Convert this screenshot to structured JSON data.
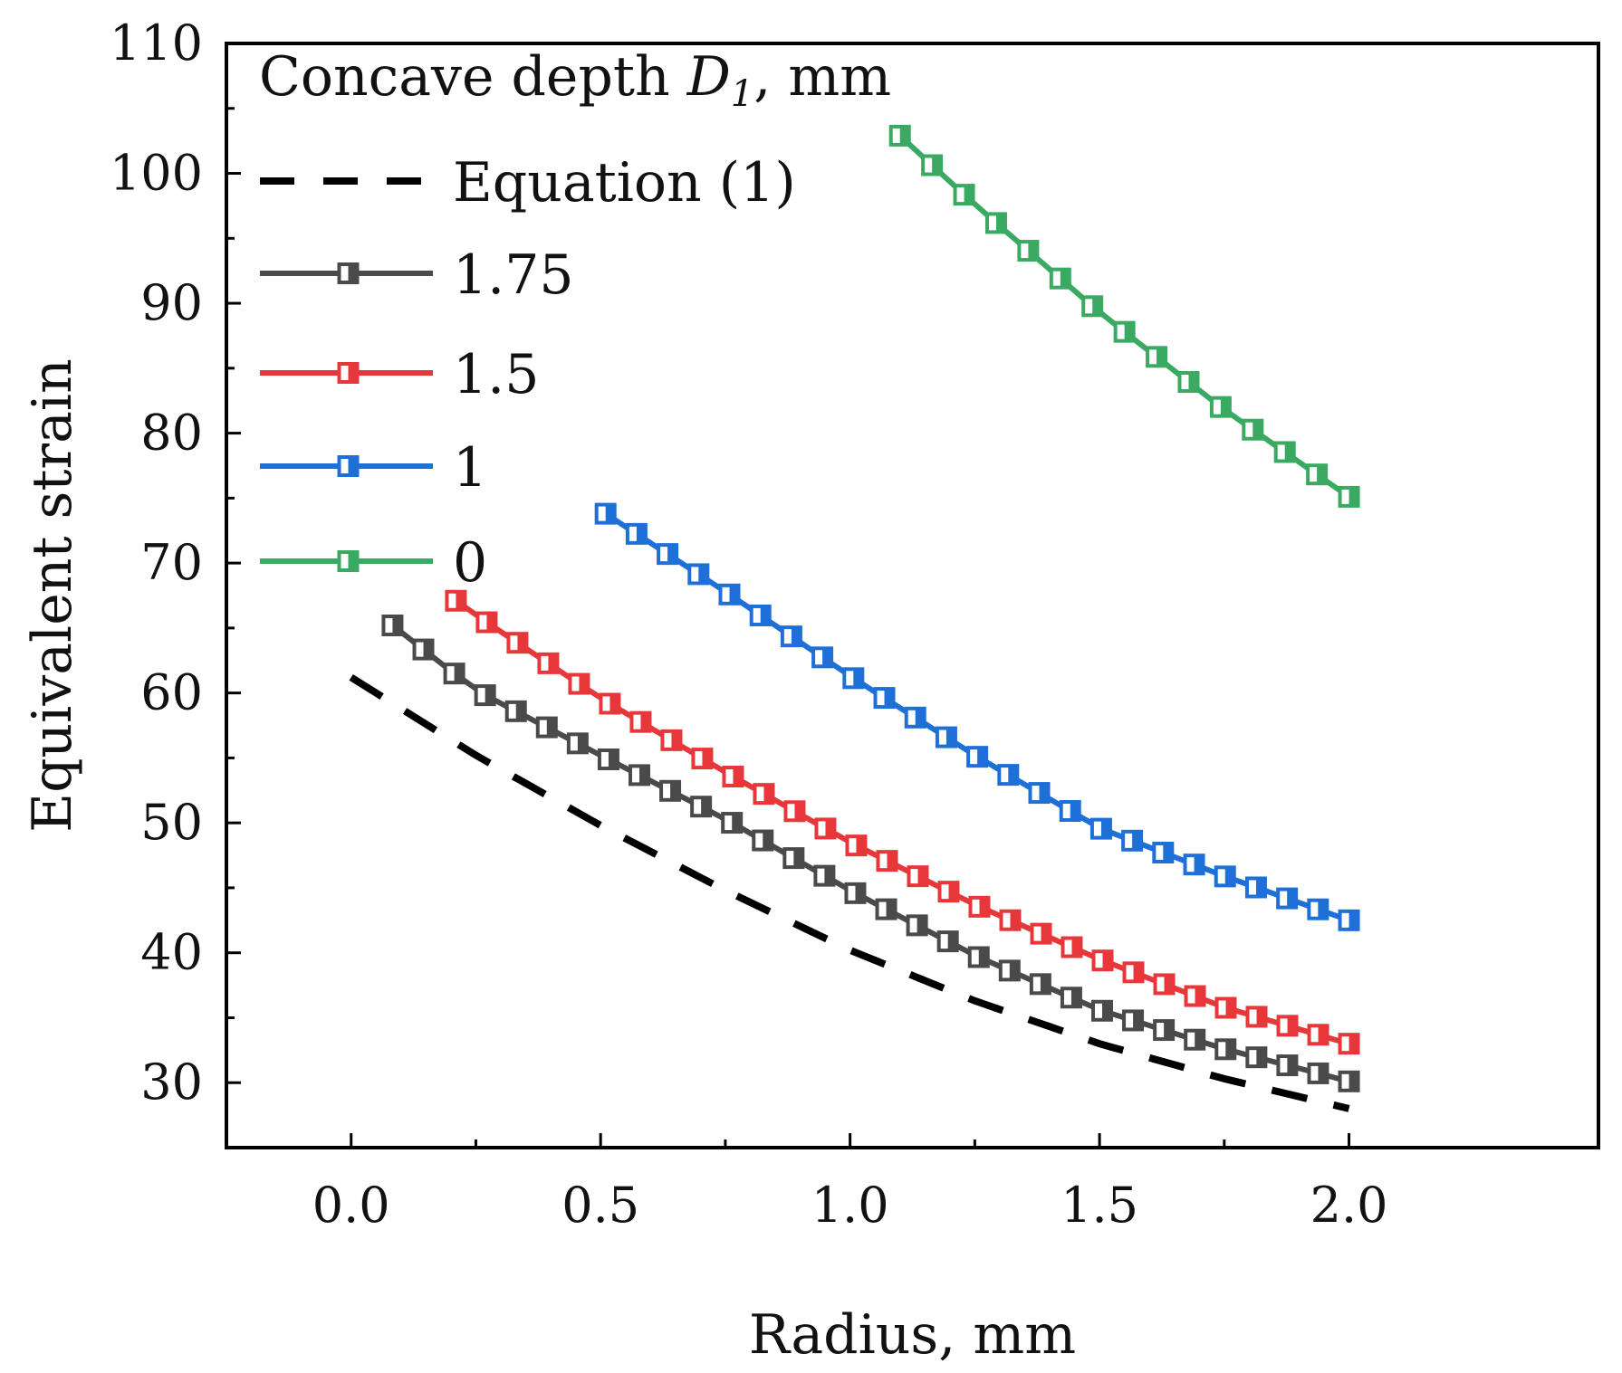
{
  "chart_data": {
    "type": "line",
    "xlabel": "Radius, mm",
    "ylabel": "Equivalent strain",
    "xlim": [
      -0.25,
      2.5
    ],
    "ylim": [
      25,
      110
    ],
    "xticks": [
      0.0,
      0.5,
      1.0,
      1.5,
      2.0
    ],
    "xtick_labels": [
      "0.0",
      "0.5",
      "1.0",
      "1.5",
      "2.0"
    ],
    "yticks": [
      30,
      40,
      50,
      60,
      70,
      80,
      90,
      100,
      110
    ],
    "ytick_labels": [
      "30",
      "40",
      "50",
      "60",
      "70",
      "80",
      "90",
      "100",
      "110"
    ],
    "grid": false,
    "legend": {
      "position": "top-left",
      "title_prefix": "Concave depth ",
      "title_var": "D",
      "title_sub": "1",
      "title_suffix": ", mm"
    },
    "equation": {
      "name": "Equation (1)",
      "color": "#000000",
      "style": "dashed",
      "x": [
        0.0,
        0.25,
        0.5,
        0.75,
        1.0,
        1.25,
        1.5,
        1.75,
        2.0
      ],
      "y": [
        61.2,
        55.2,
        49.8,
        44.8,
        40.2,
        36.3,
        33.0,
        30.3,
        28.0
      ]
    },
    "series": [
      {
        "name": "1.75",
        "color": "#4a4a4a",
        "x_start": 0.083,
        "x_end": 2.0,
        "anchors_x": [
          0.083,
          0.25,
          0.5,
          0.75,
          1.0,
          1.25,
          1.5,
          1.75,
          2.0
        ],
        "anchors_y": [
          65.2,
          60.2,
          55.2,
          50.3,
          44.8,
          39.8,
          35.6,
          32.6,
          30.1
        ]
      },
      {
        "name": "1.5",
        "color": "#e8373a",
        "x_start": 0.21,
        "x_end": 2.0,
        "anchors_x": [
          0.21,
          0.25,
          0.5,
          0.75,
          1.0,
          1.25,
          1.5,
          1.75,
          2.0
        ],
        "anchors_y": [
          67.1,
          66.0,
          59.6,
          53.9,
          48.5,
          43.7,
          39.5,
          35.8,
          33.0
        ]
      },
      {
        "name": "1",
        "color": "#1f6fd8",
        "x_start": 0.51,
        "x_end": 2.0,
        "anchors_x": [
          0.51,
          0.75,
          1.0,
          1.25,
          1.5,
          1.75,
          2.0
        ],
        "anchors_y": [
          73.8,
          67.8,
          61.3,
          55.2,
          49.6,
          45.9,
          42.5
        ]
      },
      {
        "name": "0",
        "color": "#3aaa62",
        "x_start": 1.1,
        "x_end": 2.0,
        "anchors_x": [
          1.1,
          1.25,
          1.5,
          1.75,
          2.0
        ],
        "anchors_y": [
          102.9,
          97.6,
          89.3,
          81.8,
          75.1
        ]
      }
    ]
  }
}
